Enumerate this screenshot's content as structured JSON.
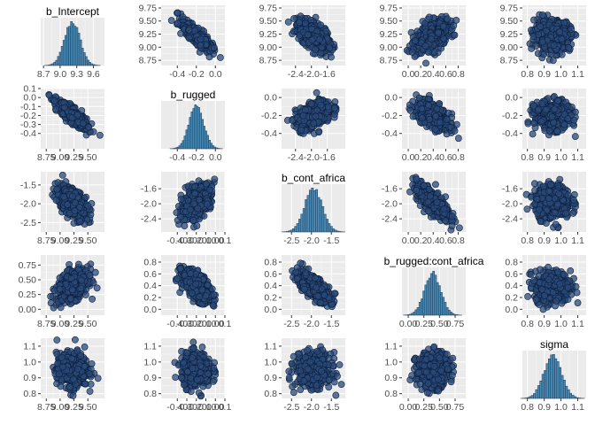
{
  "chart_data": {
    "type": "scatter",
    "layout": "pairs-matrix",
    "parameters": [
      "b_Intercept",
      "b_rugged",
      "b_cont_africa",
      "b_rugged:cont_africa",
      "sigma"
    ],
    "titles": [
      "b_Intercept",
      "b_rugged",
      "b_cont_africa",
      "b_rugged:cont_africa",
      "sigma"
    ],
    "ranges": [
      [
        8.65,
        9.8
      ],
      [
        -0.57,
        0.1
      ],
      [
        -2.75,
        -1.15
      ],
      [
        -0.1,
        0.92
      ],
      [
        0.77,
        1.15
      ]
    ],
    "y_ticks": [
      [
        "8.75",
        "9.00",
        "9.25",
        "9.50",
        "9.75"
      ],
      [
        "-0.4",
        "-0.3",
        "-0.2",
        "-0.1",
        "0.0",
        "0.1"
      ],
      [
        "-2.5",
        "-2.0",
        "-1.5"
      ],
      [
        "0.00",
        "0.25",
        "0.50",
        "0.75"
      ],
      [
        "0.8",
        "0.9",
        "1.0",
        "1.1"
      ]
    ],
    "y_ticks_alt": [
      [
        "8.75",
        "9.00",
        "9.25",
        "9.50",
        "9.75"
      ],
      [
        "-0.4",
        "-0.2",
        "0.0"
      ],
      [
        "-2.4",
        "-2.0",
        "-1.6"
      ],
      [
        "0.0",
        "0.2",
        "0.4",
        "0.6",
        "0.8"
      ],
      [
        "0.8",
        "0.9",
        "1.0",
        "1.1"
      ]
    ],
    "x_ticks": [
      [
        "8.75",
        "9.00",
        "9.25",
        "9.50"
      ],
      [
        "-0.40",
        "-0.30",
        "-0.20",
        "-0.10",
        "0.00",
        "0.1"
      ],
      [
        "-2.5",
        "-2.0",
        "-1.5"
      ],
      [
        "0.00",
        "0.25",
        "0.50",
        "0.75"
      ],
      [
        "0.8",
        "0.9",
        "1.0",
        "1.1"
      ]
    ],
    "diag_x_ticks": [
      [
        "8.7",
        "9.0",
        "9.3",
        "9.6"
      ],
      [
        "-0.4",
        "-0.2",
        "0.0"
      ],
      [
        "-2.5",
        "-2.0",
        "-1.5"
      ],
      [
        "0.00",
        "0.25",
        "0.50",
        "0.75"
      ],
      [
        "0.8",
        "0.9",
        "1.0",
        "1.1"
      ]
    ],
    "upper_x_ticks": [
      [
        "-0.4",
        "-0.2",
        "0.0"
      ],
      [
        "-2.4",
        "-2.0",
        "-1.6"
      ],
      [
        "0.0",
        "0.2",
        "0.4",
        "0.6",
        "0.8"
      ],
      [
        "0.8",
        "0.9",
        "1.0",
        "1.1"
      ]
    ],
    "means": [
      9.22,
      -0.2,
      -1.95,
      0.39,
      0.95
    ],
    "sds": [
      0.14,
      0.077,
      0.22,
      0.13,
      0.053
    ],
    "correlations": [
      [
        1.0,
        -0.85,
        -0.55,
        0.42,
        0.0
      ],
      [
        -0.85,
        1.0,
        0.5,
        -0.6,
        0.0
      ],
      [
        -0.55,
        0.5,
        1.0,
        -0.75,
        0.0
      ],
      [
        0.42,
        -0.6,
        -0.75,
        1.0,
        0.0
      ],
      [
        0.0,
        0.0,
        0.0,
        0.0,
        1.0
      ]
    ],
    "histogram_bins": 30,
    "draws_per_scatter": 450,
    "histogram_color": "#4a8ab3",
    "point_color": "#2a4a78",
    "grid": true
  }
}
